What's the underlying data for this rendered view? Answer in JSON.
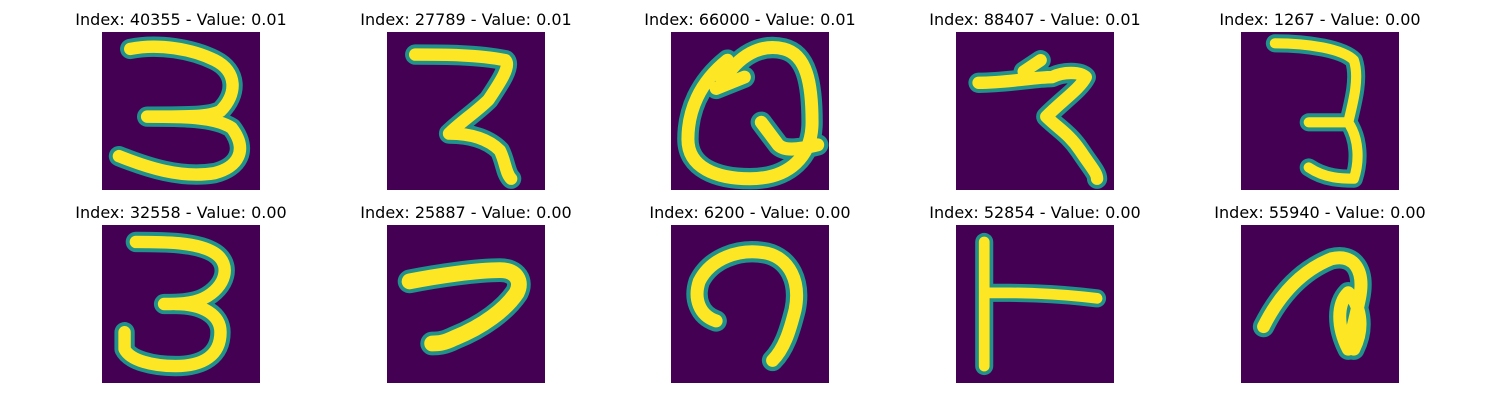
{
  "colors": {
    "background": "#440154",
    "mid": "#21918c",
    "stroke": "#fde725"
  },
  "panels": [
    {
      "title": "Index: 40355 - Value: 0.01",
      "glyph": "3-like"
    },
    {
      "title": "Index: 27789 - Value: 0.01",
      "glyph": "Z-like"
    },
    {
      "title": "Index: 66000 - Value: 0.01",
      "glyph": "Q-like loop"
    },
    {
      "title": "Index: 88407 - Value: 0.01",
      "glyph": "Z-like"
    },
    {
      "title": "Index: 1267 - Value: 0.00",
      "glyph": "3-like"
    },
    {
      "title": "Index: 32558 - Value: 0.00",
      "glyph": "3-like"
    },
    {
      "title": "Index: 25887 - Value: 0.00",
      "glyph": "7-like"
    },
    {
      "title": "Index: 6200 - Value: 0.00",
      "glyph": "n-like"
    },
    {
      "title": "Index: 52854 - Value: 0.00",
      "glyph": "T-like"
    },
    {
      "title": "Index: 55940 - Value: 0.00",
      "glyph": "a-like"
    }
  ]
}
